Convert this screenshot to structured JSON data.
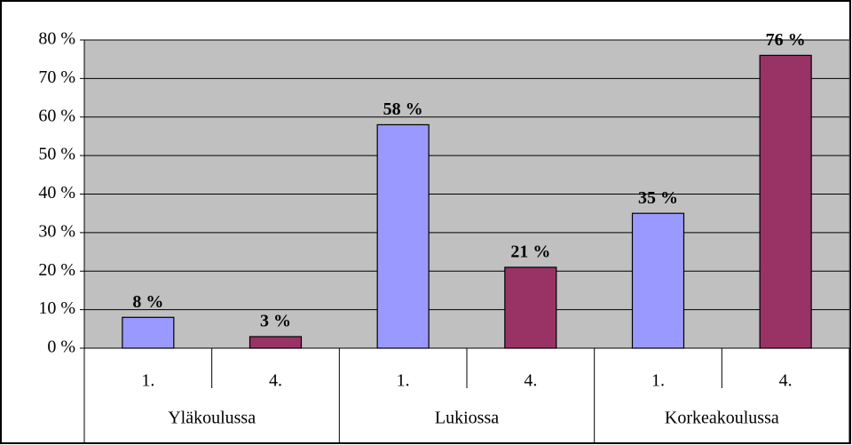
{
  "chart_data": {
    "type": "bar",
    "groups": [
      "Yläkoulussa",
      "Lukiossa",
      "Korkeakoulussa"
    ],
    "categories": [
      "1.",
      "4.",
      "1.",
      "4.",
      "1.",
      "4."
    ],
    "values": [
      8,
      3,
      58,
      21,
      35,
      76
    ],
    "value_labels": [
      "8 %",
      "3 %",
      "58 %",
      "21 %",
      "35 %",
      "76 %"
    ],
    "colors": [
      "#9999ff",
      "#993366",
      "#9999ff",
      "#993366",
      "#9999ff",
      "#993366"
    ],
    "ylim": [
      0,
      80
    ],
    "yticks": [
      {
        "value": 0,
        "label": "0 %"
      },
      {
        "value": 10,
        "label": "10 %"
      },
      {
        "value": 20,
        "label": "20 %"
      },
      {
        "value": 30,
        "label": "30 %"
      },
      {
        "value": 40,
        "label": "40 %"
      },
      {
        "value": 50,
        "label": "50 %"
      },
      {
        "value": 60,
        "label": "60 %"
      },
      {
        "value": 70,
        "label": "70 %"
      },
      {
        "value": 80,
        "label": "80 %"
      }
    ],
    "grid": true
  }
}
